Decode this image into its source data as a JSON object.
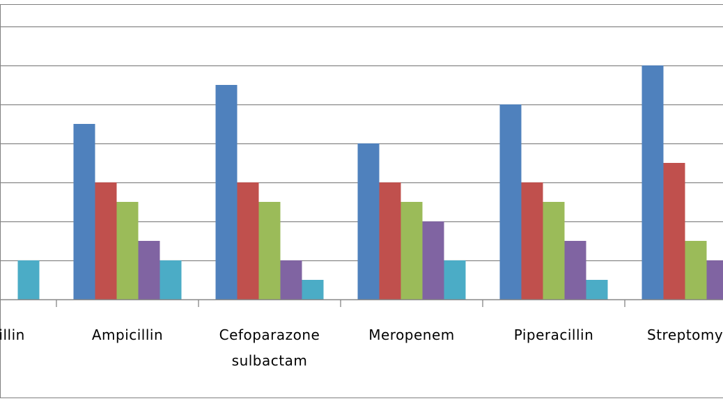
{
  "chart_data": {
    "type": "bar",
    "categories": [
      [
        "Amoxicillin"
      ],
      [
        "Ampicillin"
      ],
      [
        "Cefoparazone",
        "sulbactam"
      ],
      [
        "Meropenem"
      ],
      [
        "Piperacillin"
      ],
      [
        "Streptomycin"
      ]
    ],
    "series": [
      {
        "color": "#4F81BD",
        "values": [
          null,
          9,
          11,
          8,
          10,
          12
        ]
      },
      {
        "color": "#C0504D",
        "values": [
          null,
          6,
          6,
          6,
          6,
          7
        ]
      },
      {
        "color": "#9BBB59",
        "values": [
          null,
          5,
          5,
          5,
          5,
          3
        ]
      },
      {
        "color": "#8064A2",
        "values": [
          null,
          3,
          2,
          4,
          3,
          2
        ]
      },
      {
        "color": "#4BACC6",
        "values": [
          2,
          2,
          1,
          2,
          1,
          null
        ]
      }
    ],
    "ylim": [
      0,
      14
    ],
    "y_gridline_step": 2,
    "grid": true,
    "legend": "none"
  }
}
